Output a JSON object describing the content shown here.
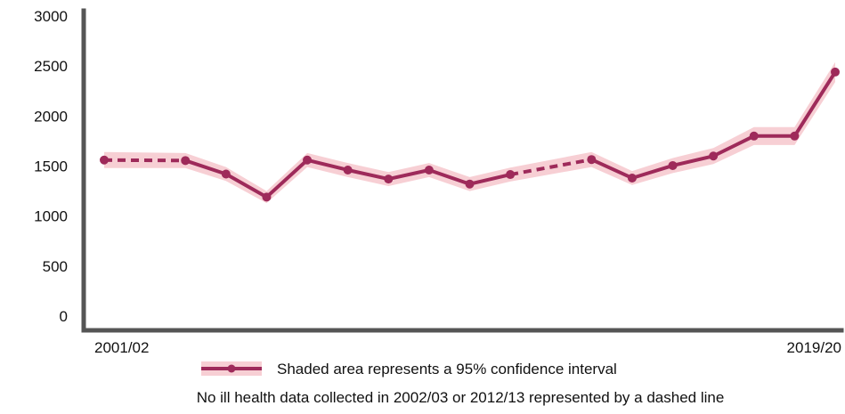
{
  "chart_data": {
    "type": "line",
    "title": "",
    "xlabel": "",
    "ylabel": "",
    "ylim": [
      0,
      3000
    ],
    "yticks": [
      0,
      500,
      1000,
      1500,
      2000,
      2500,
      3000
    ],
    "x_tick_labels": [
      "2001/02",
      "2019/20"
    ],
    "grid": false,
    "colors": {
      "line": "#9e2a5a",
      "band": "#f7cfd4"
    },
    "series": [
      {
        "x": [
          "2001/02",
          "2003/04",
          "2004/05",
          "2005/06",
          "2006/07",
          "2007/08",
          "2008/09",
          "2009/10",
          "2010/11",
          "2011/12",
          "2013/14",
          "2014/15",
          "2015/16",
          "2016/17",
          "2017/18",
          "2018/19",
          "2019/20"
        ],
        "values": [
          1560,
          1555,
          1420,
          1190,
          1560,
          1460,
          1370,
          1460,
          1320,
          1415,
          1565,
          1380,
          1505,
          1600,
          1800,
          1800,
          2440
        ],
        "lower": [
          1480,
          1480,
          1350,
          1130,
          1490,
          1390,
          1300,
          1390,
          1250,
          1345,
          1490,
          1310,
          1430,
          1520,
          1710,
          1710,
          2340
        ],
        "upper": [
          1640,
          1630,
          1490,
          1250,
          1630,
          1530,
          1440,
          1530,
          1390,
          1485,
          1640,
          1450,
          1580,
          1680,
          1890,
          1890,
          2540
        ],
        "dashed_gaps": [
          [
            "2001/02",
            "2003/04"
          ],
          [
            "2011/12",
            "2013/14"
          ]
        ]
      }
    ]
  },
  "legend": {
    "position": "bottom",
    "ci_text": "Shaded area represents a 95% confidence interval"
  },
  "footnote": "No ill health data collected in 2002/03 or 2012/13 represented by a dashed line"
}
